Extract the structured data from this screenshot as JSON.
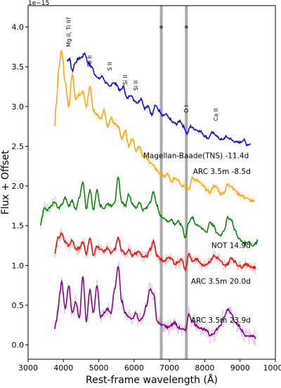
{
  "chart_data": {
    "type": "line",
    "xlabel": "Rest-frame wavelength (Å)",
    "ylabel": "Flux + Offset",
    "y_offset_text": "1e−15",
    "xlim": [
      3000,
      10000
    ],
    "ylim": [
      -0.18,
      4.27
    ],
    "xticks": [
      3000,
      4000,
      5000,
      6000,
      7000,
      8000,
      9000,
      10000
    ],
    "yticks": [
      0.0,
      0.5,
      1.0,
      1.5,
      2.0,
      2.5,
      3.0,
      3.5,
      4.0
    ],
    "ytick_labels": [
      "0.0",
      "0.5",
      "1.0",
      "1.5",
      "2.0",
      "2.5",
      "3.0",
      "3.5",
      "4.0"
    ],
    "grid": false,
    "vertical_bands": [
      {
        "x": 6770,
        "color": "#aaaaaa"
      },
      {
        "x": 7480,
        "color": "#aaaaaa"
      }
    ],
    "markers": [
      {
        "x": 6770,
        "y": 4.0
      },
      {
        "x": 7480,
        "y": 4.0
      }
    ],
    "line_features": [
      {
        "text": "Mg II, Ti II?",
        "x": 4200,
        "y": 3.75
      },
      {
        "text": "Fe II",
        "x": 4800,
        "y": 3.5
      },
      {
        "text": "S II",
        "x": 5370,
        "y": 3.45
      },
      {
        "text": "Si II",
        "x": 5800,
        "y": 3.27
      },
      {
        "text": "Si II",
        "x": 6100,
        "y": 3.2
      },
      {
        "text": "O I",
        "x": 7530,
        "y": 2.92
      },
      {
        "text": "Ca II",
        "x": 8370,
        "y": 2.82
      }
    ],
    "series": [
      {
        "name": "Magellan-Baade(TNS) -11.4d",
        "color": "#0000ff",
        "label_x": 9250,
        "label_y": 2.35,
        "noise": 0,
        "x": [
          4100,
          4170,
          4250,
          4330,
          4420,
          4520,
          4600,
          4700,
          4800,
          4900,
          5000,
          5100,
          5200,
          5300,
          5400,
          5500,
          5600,
          5700,
          5800,
          5900,
          6000,
          6100,
          6200,
          6300,
          6400,
          6500,
          6600,
          6700,
          6800,
          6900,
          7000,
          7100,
          7200,
          7300,
          7400,
          7500,
          7600,
          7700,
          7800,
          7900,
          8000,
          8100,
          8200,
          8300,
          8400,
          8500,
          8600,
          8700,
          8800,
          8900,
          9000,
          9100,
          9200,
          9300
        ],
        "y": [
          3.58,
          3.6,
          3.45,
          3.55,
          3.6,
          3.62,
          3.67,
          3.55,
          3.5,
          3.4,
          3.35,
          3.38,
          3.3,
          3.25,
          3.3,
          3.28,
          3.2,
          3.25,
          3.1,
          3.15,
          3.08,
          3.05,
          3.1,
          2.98,
          3.0,
          2.9,
          3.02,
          2.95,
          2.88,
          2.9,
          2.85,
          2.8,
          2.78,
          2.82,
          2.75,
          2.66,
          2.75,
          2.72,
          2.7,
          2.68,
          2.63,
          2.6,
          2.67,
          2.65,
          2.6,
          2.58,
          2.62,
          2.6,
          2.57,
          2.55,
          2.55,
          2.58,
          2.52,
          2.53
        ]
      },
      {
        "name": "ARC 3.5m -8.5d",
        "color": "#ffa500",
        "label_x": 9300,
        "label_y": 2.15,
        "noise": 0.06,
        "x": [
          3750,
          3800,
          3870,
          3950,
          4050,
          4150,
          4250,
          4350,
          4450,
          4550,
          4650,
          4750,
          4850,
          4950,
          5050,
          5150,
          5250,
          5350,
          5450,
          5550,
          5650,
          5750,
          5850,
          5950,
          6050,
          6150,
          6250,
          6350,
          6450,
          6550,
          6650,
          6750,
          6850,
          6950,
          7050,
          7150,
          7250,
          7350,
          7450,
          7550,
          7650,
          7750,
          7850,
          7950,
          8050,
          8150,
          8250,
          8350,
          8450,
          8550,
          8650,
          8750,
          8850,
          8950,
          9050,
          9150,
          9300,
          9400
        ],
        "y": [
          2.75,
          3.05,
          3.5,
          3.7,
          3.3,
          3.0,
          3.4,
          3.1,
          3.15,
          3.2,
          3.0,
          3.25,
          2.95,
          2.9,
          2.85,
          2.95,
          2.75,
          2.85,
          2.78,
          2.75,
          2.6,
          2.7,
          2.5,
          2.6,
          2.45,
          2.5,
          2.38,
          2.35,
          2.3,
          2.25,
          2.2,
          2.15,
          2.12,
          2.15,
          2.05,
          2.1,
          2.08,
          2.0,
          2.02,
          1.95,
          2.1,
          2.08,
          2.05,
          2.0,
          1.95,
          1.92,
          2.0,
          1.98,
          1.9,
          1.92,
          2.02,
          2.0,
          1.95,
          1.9,
          1.88,
          1.85,
          1.82,
          1.8
        ]
      },
      {
        "name": "NOT 14.9d",
        "color": "#008000",
        "label_x": 9300,
        "label_y": 1.22,
        "noise": 0.08,
        "noise_xmax": 3800,
        "x": [
          3350,
          3400,
          3450,
          3550,
          3650,
          3750,
          3850,
          3950,
          4050,
          4150,
          4250,
          4350,
          4450,
          4550,
          4650,
          4750,
          4850,
          4950,
          5050,
          5150,
          5250,
          5350,
          5450,
          5550,
          5650,
          5750,
          5850,
          5950,
          6050,
          6150,
          6250,
          6350,
          6450,
          6550,
          6650,
          6750,
          6850,
          6950,
          7050,
          7150,
          7250,
          7350,
          7450,
          7550,
          7650,
          7750,
          7850,
          7950,
          8050,
          8150,
          8250,
          8350,
          8450,
          8550,
          8650,
          8750,
          8850,
          8950,
          9050,
          9150,
          9250,
          9350,
          9450,
          9500
        ],
        "y": [
          1.5,
          1.62,
          1.72,
          1.7,
          1.75,
          1.8,
          1.72,
          1.76,
          1.85,
          1.75,
          1.82,
          1.7,
          1.85,
          2.05,
          1.72,
          1.95,
          1.7,
          1.95,
          1.75,
          1.72,
          1.78,
          1.75,
          1.8,
          2.1,
          1.8,
          1.75,
          1.9,
          1.78,
          1.72,
          1.8,
          1.7,
          1.72,
          1.8,
          1.92,
          1.75,
          1.62,
          1.6,
          1.55,
          1.58,
          1.52,
          1.55,
          1.5,
          1.35,
          1.55,
          1.6,
          1.52,
          1.5,
          1.45,
          1.42,
          1.55,
          1.5,
          1.4,
          1.38,
          1.45,
          1.6,
          1.58,
          1.45,
          1.35,
          1.3,
          1.28,
          1.3,
          1.25,
          1.28,
          1.32
        ]
      },
      {
        "name": "ARC 3.5m 20.0d",
        "color": "#ff0000",
        "label_x": 9300,
        "label_y": 0.77,
        "noise": 0.07,
        "x": [
          3750,
          3850,
          3950,
          4050,
          4150,
          4250,
          4350,
          4450,
          4550,
          4650,
          4750,
          4850,
          4950,
          5050,
          5150,
          5250,
          5350,
          5450,
          5550,
          5650,
          5750,
          5850,
          5950,
          6050,
          6150,
          6250,
          6350,
          6450,
          6550,
          6650,
          6750,
          6850,
          6950,
          7050,
          7150,
          7250,
          7350,
          7450,
          7550,
          7650,
          7750,
          7850,
          7950,
          8050,
          8150,
          8250,
          8350,
          8450,
          8550,
          8650,
          8750,
          8850,
          8950,
          9050,
          9150,
          9250,
          9350,
          9450
        ],
        "y": [
          1.15,
          1.35,
          1.4,
          1.3,
          1.25,
          1.32,
          1.2,
          1.22,
          1.3,
          1.15,
          1.35,
          1.12,
          1.25,
          1.2,
          1.18,
          1.22,
          1.15,
          1.2,
          1.35,
          1.18,
          1.15,
          1.2,
          1.12,
          1.15,
          1.18,
          1.1,
          1.12,
          1.2,
          1.3,
          1.12,
          1.08,
          1.05,
          1.1,
          1.08,
          1.02,
          1.05,
          1.08,
          0.95,
          1.15,
          1.05,
          1.08,
          1.05,
          1.0,
          1.02,
          1.05,
          1.12,
          1.1,
          1.05,
          1.0,
          1.02,
          1.1,
          1.05,
          1.0,
          0.98,
          1.02,
          1.0,
          0.98,
          0.97
        ]
      },
      {
        "name": "ARC 3.5m 23.9d",
        "color": "#800080",
        "label_x": 9300,
        "label_y": 0.28,
        "noise": 0.1,
        "x": [
          3750,
          3800,
          3850,
          3900,
          3950,
          4050,
          4150,
          4250,
          4350,
          4450,
          4550,
          4650,
          4750,
          4850,
          4950,
          5050,
          5150,
          5250,
          5350,
          5450,
          5550,
          5650,
          5750,
          5850,
          5950,
          6050,
          6150,
          6250,
          6350,
          6450,
          6550,
          6650,
          6750,
          6850,
          6950,
          7050,
          7150,
          7250,
          7350,
          7450,
          7550,
          7650,
          7750,
          7850,
          7950,
          8050,
          8150,
          8250,
          8350,
          8450,
          8550,
          8650,
          8750,
          8850,
          8950,
          9050,
          9150,
          9250,
          9350,
          9450
        ],
        "y": [
          0.2,
          0.3,
          0.45,
          0.65,
          0.8,
          0.45,
          0.75,
          0.4,
          0.55,
          0.35,
          0.85,
          0.3,
          0.7,
          0.4,
          0.75,
          0.35,
          0.4,
          0.45,
          0.4,
          0.7,
          1.0,
          0.55,
          0.4,
          0.35,
          0.32,
          0.4,
          0.3,
          0.35,
          0.5,
          0.7,
          0.65,
          0.3,
          0.25,
          0.25,
          0.22,
          0.25,
          0.28,
          0.22,
          0.2,
          0.18,
          0.38,
          0.3,
          0.25,
          0.22,
          0.2,
          0.18,
          0.12,
          0.15,
          0.2,
          0.25,
          0.35,
          0.45,
          0.4,
          0.3,
          0.25,
          0.18,
          0.12,
          0.1,
          0.12,
          0.08
        ]
      }
    ]
  }
}
